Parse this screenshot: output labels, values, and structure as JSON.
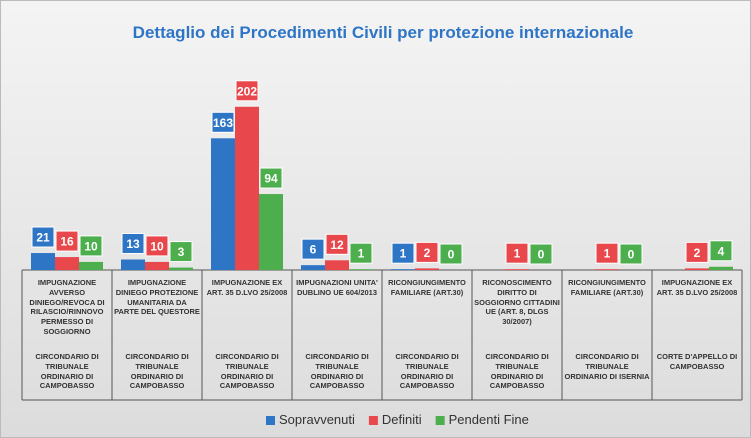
{
  "chart_data": {
    "type": "bar",
    "title": "Dettaglio dei Procedimenti Civili per protezione internazionale",
    "categories": [
      "IMPUGNAZIONE AVVERSO DINIEGO/REVOCA DI RILASCIO/RINNOVO PERMESSO DI SOGGIORNO",
      "IMPUGNAZIONE DINIEGO PROTEZIONE UMANITARIA DA PARTE DEL QUESTORE",
      "IMPUGNAZIONE EX ART. 35 D.LVO 25/2008",
      "IMPUGNAZIONI UNITA' DUBLINO UE 604/2013",
      "RICONGIUNGIMENTO FAMILIARE (ART.30)",
      "RICONOSCIMENTO DIRITTO DI SOGGIORNO CITTADINI UE (ART. 8, DLGS 30/2007)",
      "RICONGIUNGIMENTO FAMILIARE (ART.30)",
      "IMPUGNAZIONE EX ART. 35 D.LVO 25/2008"
    ],
    "courts": [
      "CIRCONDARIO DI TRIBUNALE ORDINARIO DI CAMPOBASSO",
      "CIRCONDARIO DI TRIBUNALE ORDINARIO DI CAMPOBASSO",
      "CIRCONDARIO DI TRIBUNALE ORDINARIO DI CAMPOBASSO",
      "CIRCONDARIO DI TRIBUNALE ORDINARIO DI CAMPOBASSO",
      "CIRCONDARIO DI TRIBUNALE ORDINARIO DI CAMPOBASSO",
      "CIRCONDARIO DI TRIBUNALE ORDINARIO DI CAMPOBASSO",
      "CIRCONDARIO DI TRIBUNALE ORDINARIO DI ISERNIA",
      "CORTE D'APPELLO DI CAMPOBASSO"
    ],
    "series": [
      {
        "name": "Sopravvenuti",
        "color": "#2e75c6",
        "values": [
          21,
          13,
          163,
          6,
          1,
          null,
          null,
          null
        ]
      },
      {
        "name": "Definiti",
        "color": "#e8474c",
        "values": [
          16,
          10,
          202,
          12,
          2,
          1,
          1,
          2
        ]
      },
      {
        "name": "Pendenti Fine",
        "color": "#4cae4c",
        "values": [
          10,
          3,
          94,
          1,
          0,
          0,
          0,
          4
        ]
      }
    ],
    "ylim": [
      0,
      250
    ]
  }
}
